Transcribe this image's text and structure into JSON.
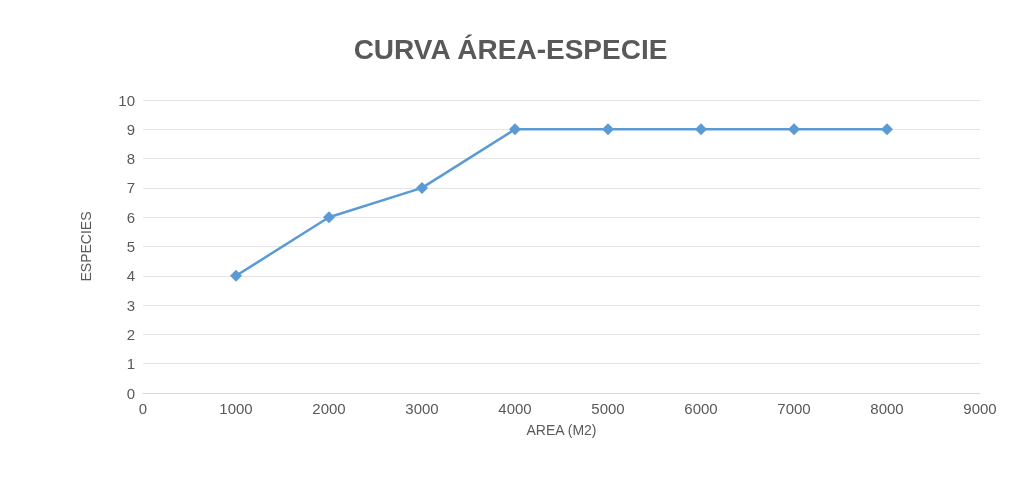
{
  "chart_data": {
    "type": "line",
    "title": "CURVA ÁREA-ESPECIE",
    "xlabel": "AREA (M2)",
    "ylabel": "ESPECIES",
    "x": [
      1000,
      2000,
      3000,
      4000,
      5000,
      6000,
      7000,
      8000
    ],
    "values": [
      4,
      6,
      7,
      9,
      9,
      9,
      9,
      9
    ],
    "color": "#5b9bd5",
    "xlim": [
      0,
      9000
    ],
    "xticks": [
      0,
      1000,
      2000,
      3000,
      4000,
      5000,
      6000,
      7000,
      8000,
      9000
    ],
    "ylim": [
      0,
      10
    ],
    "yticks": [
      0,
      1,
      2,
      3,
      4,
      5,
      6,
      7,
      8,
      9,
      10
    ],
    "grid": "y",
    "marker": "diamond"
  }
}
